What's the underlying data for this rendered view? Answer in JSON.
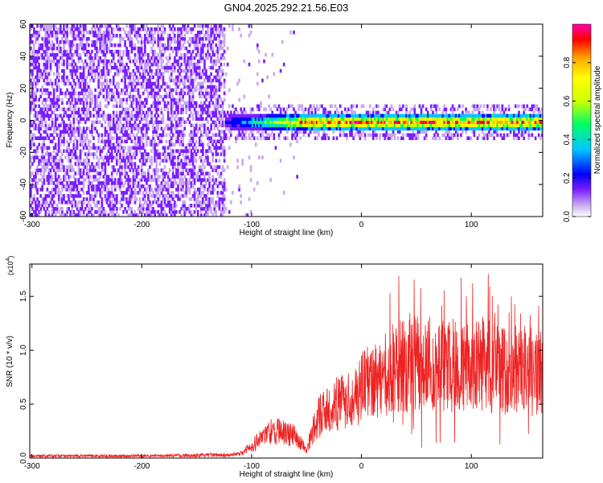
{
  "figure": {
    "title": "GN04.2025.292.21.56.E03"
  },
  "colors": {
    "spectrogram_background": "#ffffff",
    "snr_line": "#ee2222",
    "axis": "#000000",
    "colorbar_stops": [
      "#c8a8f0",
      "#7a1fff",
      "#0000ff",
      "#00c8ff",
      "#00ff66",
      "#ccff00",
      "#ffff00",
      "#ffaa00",
      "#ff0000",
      "#ff00aa"
    ]
  },
  "chart_data": [
    {
      "type": "heatmap",
      "name": "spectrogram",
      "title": "GN04.2025.292.21.56.E03",
      "xlabel": "Height of straight line (km)",
      "ylabel": "Frequency (Hz)",
      "xlim": [
        -302,
        165
      ],
      "ylim": [
        -60,
        60
      ],
      "x_ticks": [
        -300,
        -200,
        -100,
        0,
        100
      ],
      "y_ticks": [
        -60,
        -40,
        -20,
        0,
        20,
        40,
        60
      ],
      "x_tick_labels": [
        "-300",
        "-200",
        "-100",
        "0",
        "100"
      ],
      "y_tick_labels": [
        "-60",
        "-40",
        "-20",
        "0",
        "20",
        "40",
        "60"
      ],
      "noise_region_km": [
        -302,
        -125
      ],
      "signal_band_hz": [
        -6,
        6
      ],
      "signal_center_hz": -2,
      "colorbar": {
        "label": "Normalized spectral amplitude",
        "range": [
          0.0,
          1.0
        ],
        "ticks": [
          0.0,
          0.2,
          0.4,
          0.6,
          0.8
        ],
        "tick_labels": [
          "0.0",
          "0.2",
          "0.4",
          "0.6",
          "0.8"
        ]
      }
    },
    {
      "type": "line",
      "name": "snr",
      "xlabel": "Height of straight line (km)",
      "ylabel": "SNR (10 * v/v)",
      "y_multiplier_label": "(x10",
      "y_multiplier_exp": "4",
      "xlim": [
        -302,
        165
      ],
      "ylim": [
        0,
        1.8
      ],
      "x_ticks": [
        -300,
        -200,
        -100,
        0,
        100
      ],
      "y_ticks": [
        0.0,
        0.5,
        1.0,
        1.5
      ],
      "x_tick_labels": [
        "-300",
        "-200",
        "-100",
        "0",
        "100"
      ],
      "y_tick_labels": [
        "0.0",
        "0.5",
        "1.0",
        "1.5"
      ],
      "envelope": {
        "x": [
          -302,
          -250,
          -200,
          -150,
          -120,
          -110,
          -100,
          -90,
          -80,
          -70,
          -60,
          -55,
          -50,
          -45,
          -40,
          -30,
          -20,
          -10,
          0,
          10,
          20,
          30,
          40,
          50,
          60,
          70,
          80,
          90,
          100,
          110,
          120,
          130,
          140,
          150,
          160,
          165
        ],
        "y": [
          0.02,
          0.02,
          0.02,
          0.025,
          0.03,
          0.05,
          0.12,
          0.22,
          0.28,
          0.25,
          0.22,
          0.15,
          0.08,
          0.25,
          0.4,
          0.5,
          0.55,
          0.6,
          0.7,
          0.78,
          0.85,
          0.9,
          0.92,
          0.95,
          0.95,
          0.9,
          0.93,
          0.92,
          0.9,
          0.95,
          0.92,
          0.88,
          0.9,
          0.88,
          0.85,
          0.85
        ]
      }
    }
  ]
}
